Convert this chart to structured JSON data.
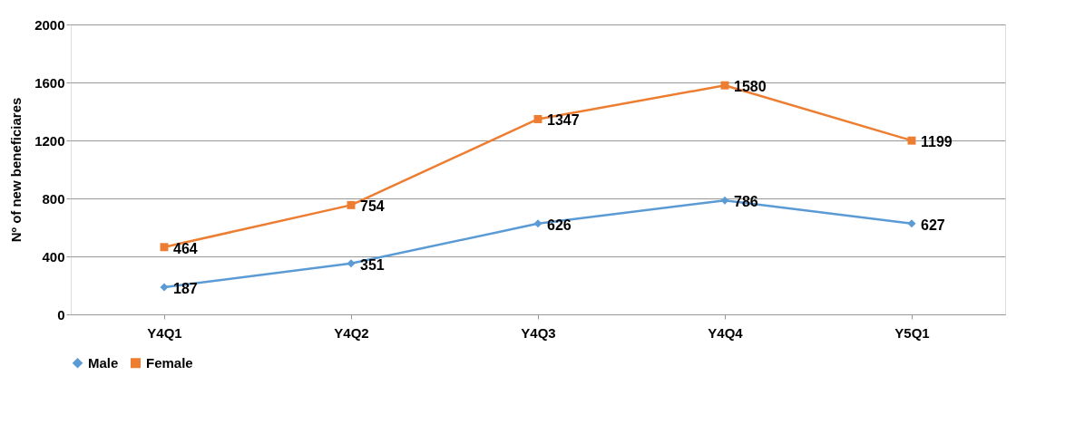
{
  "chart_data": {
    "type": "line",
    "ylabel": "Nº of new  beneficiares",
    "categories": [
      "Y4Q1",
      "Y4Q2",
      "Y4Q3",
      "Y4Q4",
      "Y5Q1"
    ],
    "series": [
      {
        "name": "Male",
        "color": "#5b9bd5",
        "marker": "diamond",
        "values": [
          187,
          351,
          626,
          786,
          627
        ]
      },
      {
        "name": "Female",
        "color": "#ed7d31",
        "marker": "square",
        "values": [
          464,
          754,
          1347,
          1580,
          1199
        ]
      }
    ],
    "ylim": [
      0,
      2000
    ],
    "yticks": [
      0,
      400,
      800,
      1200,
      1600,
      2000
    ],
    "grid": "y",
    "legend": "bottom",
    "data_labels": true
  }
}
